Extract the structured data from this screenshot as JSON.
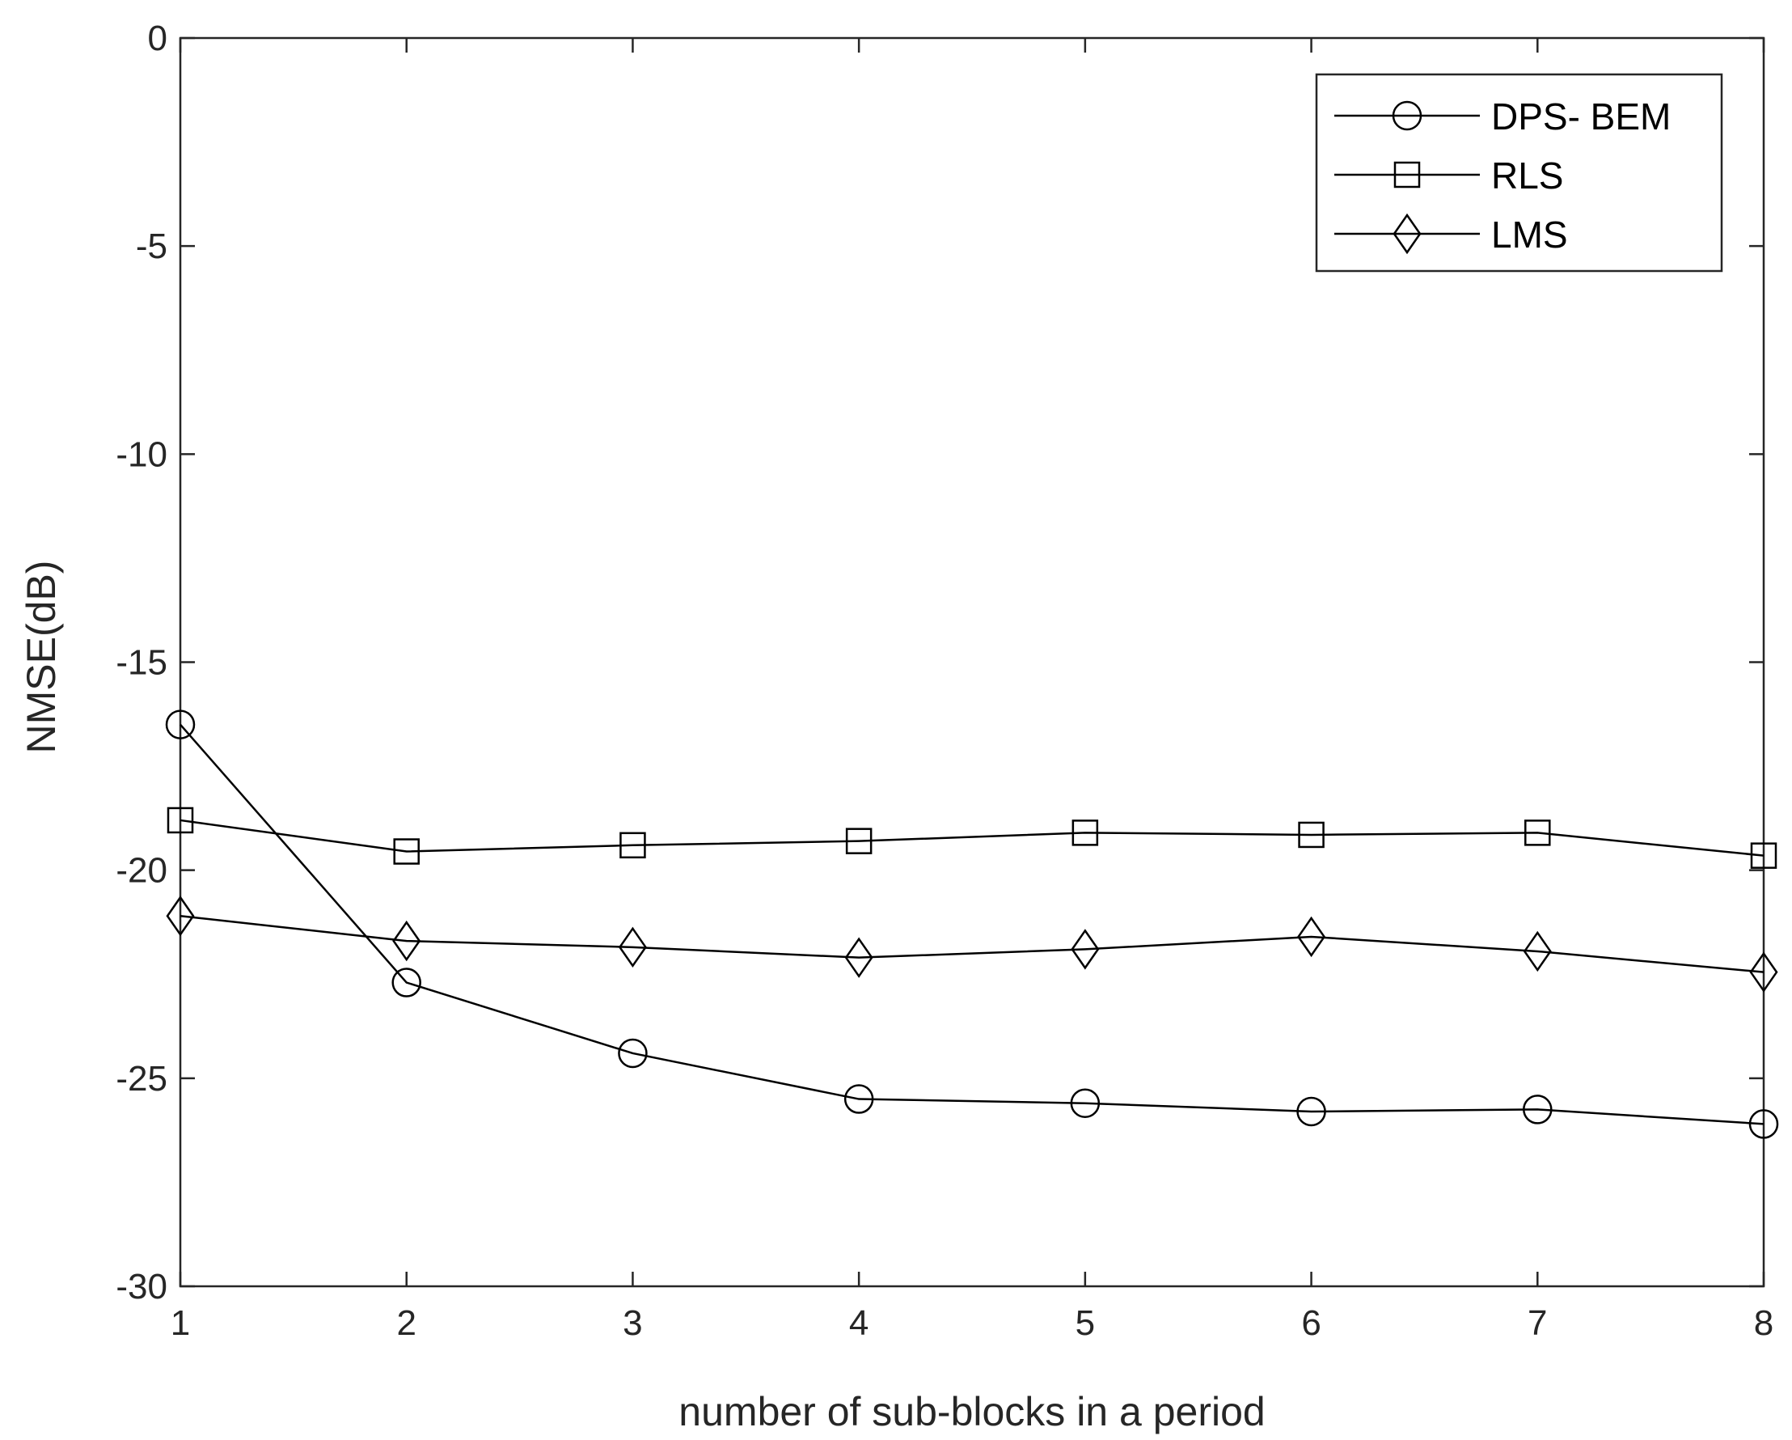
{
  "chart_data": {
    "type": "line",
    "title": "",
    "xlabel": "number of sub-blocks in a period",
    "ylabel": "NMSE(dB)",
    "x": [
      1,
      2,
      3,
      4,
      5,
      6,
      7,
      8
    ],
    "xlim": [
      1,
      8
    ],
    "ylim": [
      -30,
      0
    ],
    "xticks": [
      1,
      2,
      3,
      4,
      5,
      6,
      7,
      8
    ],
    "yticks": [
      0,
      -5,
      -10,
      -15,
      -20,
      -25,
      -30
    ],
    "grid": false,
    "legend_position": "top-right",
    "series": [
      {
        "name": "DPS- BEM",
        "marker": "circle",
        "color": "#000000",
        "values": [
          -16.5,
          -22.7,
          -24.4,
          -25.5,
          -25.6,
          -25.8,
          -25.75,
          -26.1
        ]
      },
      {
        "name": "RLS",
        "marker": "square",
        "color": "#000000",
        "values": [
          -18.8,
          -19.55,
          -19.4,
          -19.3,
          -19.1,
          -19.15,
          -19.1,
          -19.65
        ]
      },
      {
        "name": "LMS",
        "marker": "diamond",
        "color": "#000000",
        "values": [
          -21.1,
          -21.7,
          -21.85,
          -22.1,
          -21.9,
          -21.6,
          -21.95,
          -22.45
        ]
      }
    ]
  }
}
